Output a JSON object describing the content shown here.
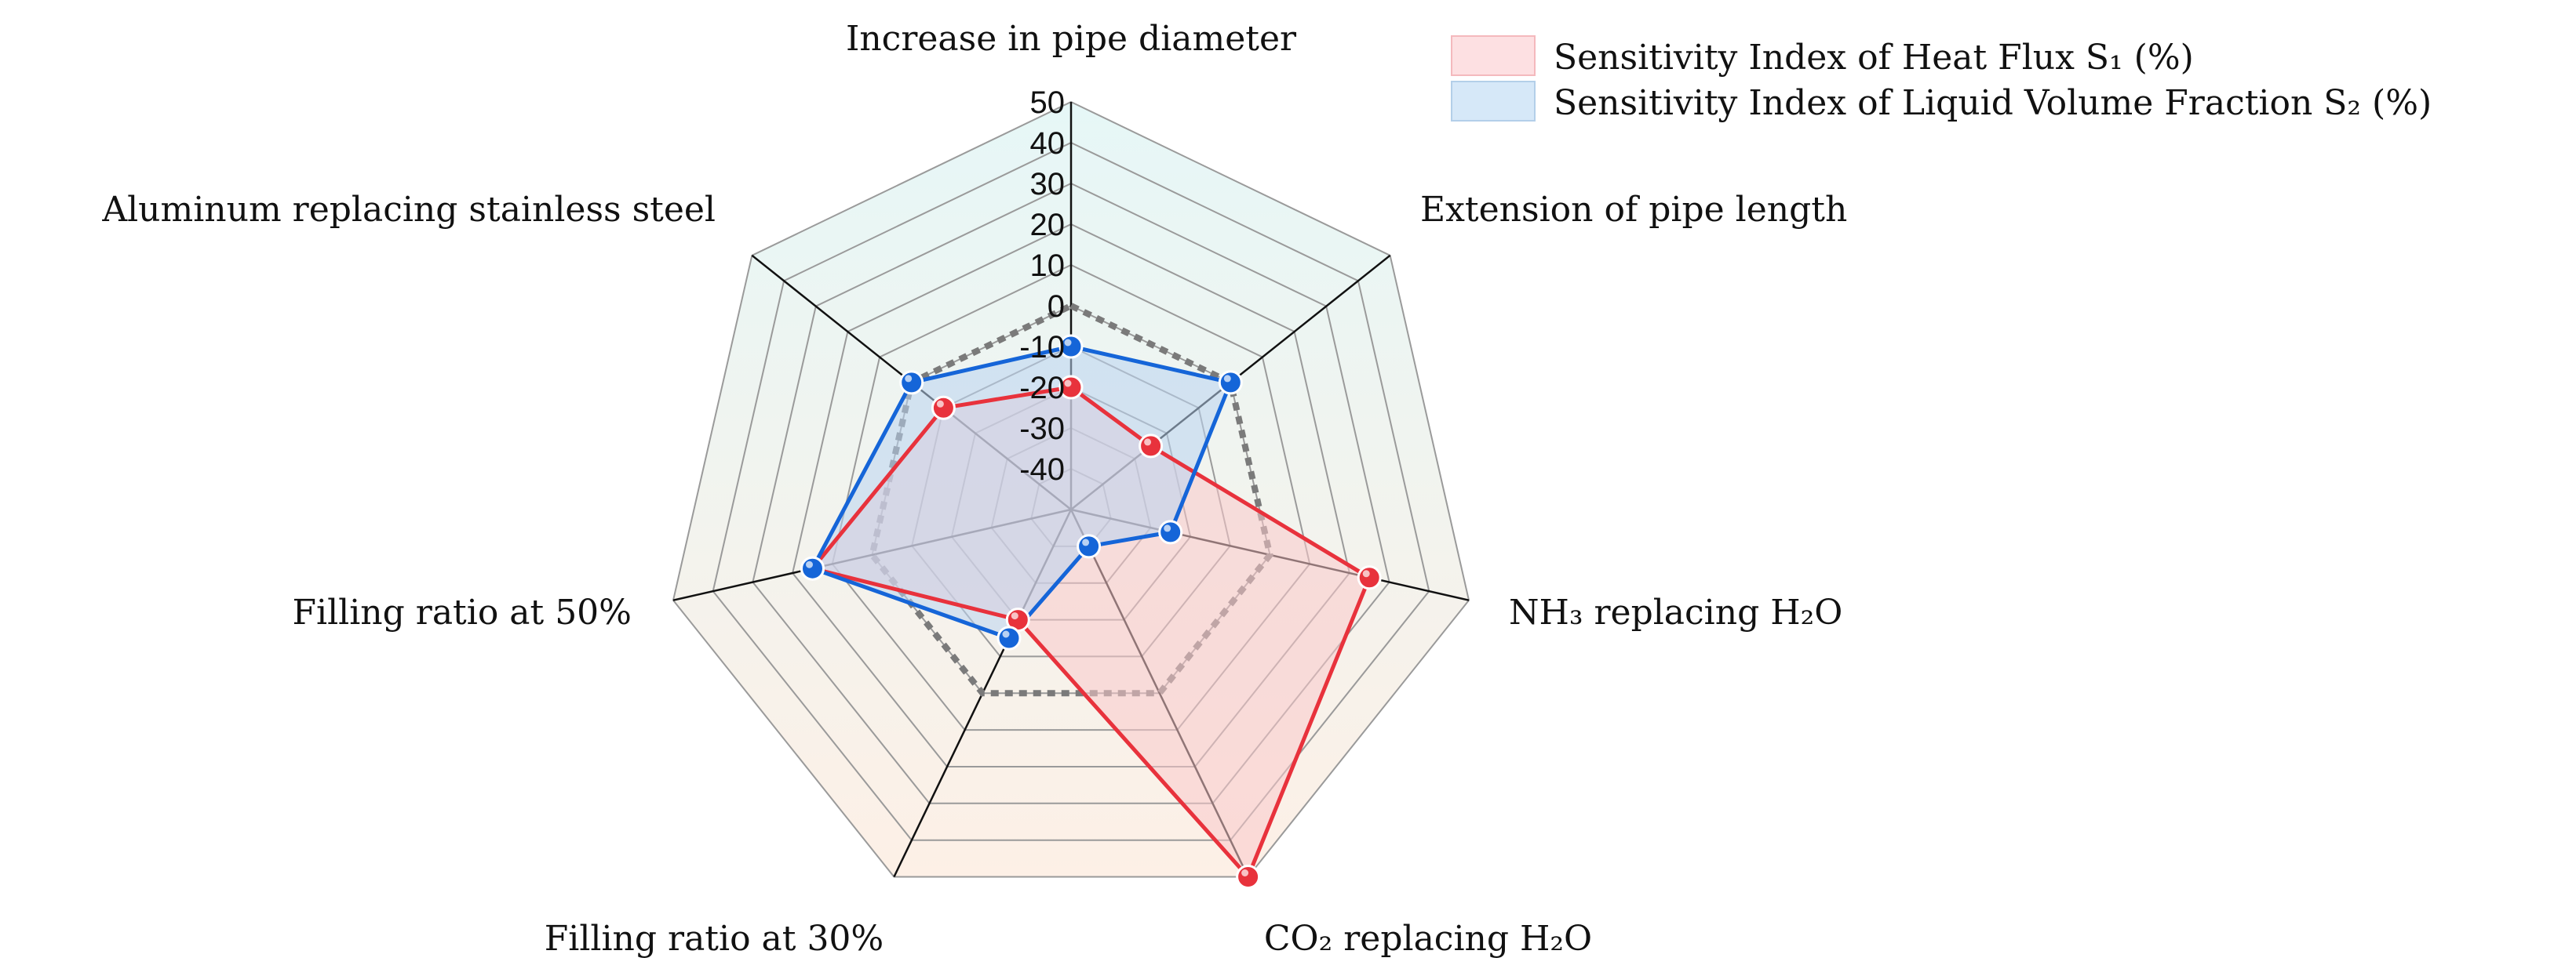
{
  "chart_data": {
    "type": "radar",
    "axes": [
      "Increase in pipe diameter",
      "Extension of pipe length",
      "NH₃ replacing H₂O",
      "CO₂ replacing H₂O",
      "Filling ratio at 30%",
      "Filling ratio at 50%",
      "Aluminum replacing stainless steel"
    ],
    "rlim": [
      -50,
      50
    ],
    "ticks": [
      50,
      40,
      30,
      20,
      10,
      0,
      -10,
      -20,
      -30,
      -40
    ],
    "tick_labels": [
      "50",
      "40",
      "30",
      "20",
      "10",
      "0",
      "-10",
      "-20",
      "-30",
      "-40"
    ],
    "reference_value": 0,
    "series": [
      {
        "name": "Sensitivity Index of Heat Flux S₁ (%)",
        "values": [
          -20,
          -25,
          25,
          50,
          -20,
          15,
          -10
        ],
        "color": "#e8323c",
        "fill": "#f9c9cb"
      },
      {
        "name": "Sensitivity Index of Liquid Volume Fraction S₂ (%)",
        "values": [
          -10,
          0,
          -25,
          -40,
          -15,
          15,
          0
        ],
        "color": "#1565d8",
        "fill": "#b9d4f0"
      }
    ]
  },
  "colors": {
    "grid": "#9a9a9a",
    "spoke": "#111111",
    "reference": "#7a7a7a",
    "bg_top": "#e6f7f7",
    "bg_bottom": "#fdf0e6"
  }
}
